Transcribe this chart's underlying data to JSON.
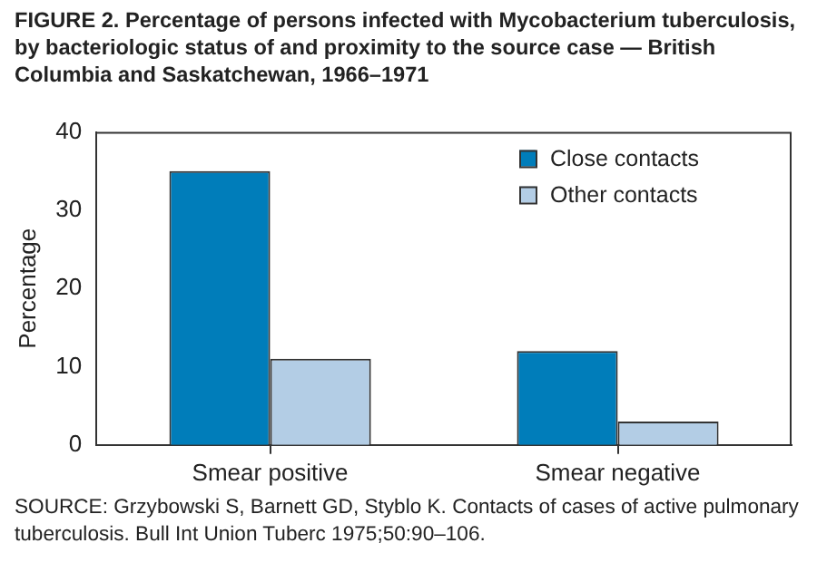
{
  "chart_data": {
    "type": "bar",
    "title": "FIGURE 2. Percentage of persons infected with Mycobacterium tuberculosis, by bacteriologic status of and proximity to the source case — British Columbia and Saskatchewan, 1966–1971",
    "ylabel": "Percentage",
    "categories": [
      "Smear positive",
      "Smear negative"
    ],
    "series": [
      {
        "name": "Close contacts",
        "color": "#007dba",
        "values": [
          35,
          12
        ]
      },
      {
        "name": "Other contacts",
        "color": "#b3cde5",
        "values": [
          11,
          3
        ]
      }
    ],
    "ylim": [
      0,
      40
    ],
    "yticks": [
      0,
      10,
      20,
      30,
      40
    ],
    "grid": false,
    "legend": "top right",
    "annotations": [
      "SOURCE: Grzybowski S, Barnett GD, Styblo K. Contacts of cases of active pulmonary tuberculosis. Bull Int Union Tuberc 1975;50:90–106."
    ]
  }
}
